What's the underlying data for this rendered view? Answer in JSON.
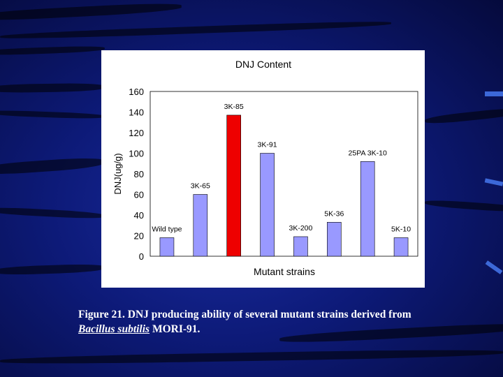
{
  "chart_data": {
    "type": "bar",
    "title": "DNJ Content",
    "xlabel": "Mutant strains",
    "ylabel": "DNJ(ug/g)",
    "ylim": [
      0,
      160
    ],
    "yticks": [
      "0",
      "20",
      "40",
      "60",
      "80",
      "100",
      "120",
      "140",
      "160"
    ],
    "grid": false,
    "categories": [
      "Wild type",
      "3K-65",
      "3K-85",
      "3K-91",
      "3K-200",
      "5K-36",
      "25PA 3K-10",
      "5K-10"
    ],
    "values": [
      18,
      60,
      137,
      100,
      19,
      33,
      92,
      18
    ],
    "highlight_index": 2,
    "colors": {
      "bar": "#9999ff",
      "highlight": "#ee0000",
      "edge": "#000000"
    }
  },
  "caption": {
    "prefix": "Figure 21. DNJ producing ability of several mutant strains derived from",
    "italic": "Bacillus subtilis",
    "suffix": " MORI-91."
  }
}
